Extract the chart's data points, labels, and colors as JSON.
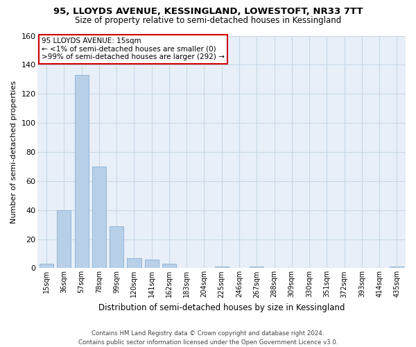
{
  "title": "95, LLOYDS AVENUE, KESSINGLAND, LOWESTOFT, NR33 7TT",
  "subtitle": "Size of property relative to semi-detached houses in Kessingland",
  "xlabel": "Distribution of semi-detached houses by size in Kessingland",
  "ylabel": "Number of semi-detached properties",
  "bar_labels": [
    "15sqm",
    "36sqm",
    "57sqm",
    "78sqm",
    "99sqm",
    "120sqm",
    "141sqm",
    "162sqm",
    "183sqm",
    "204sqm",
    "225sqm",
    "246sqm",
    "267sqm",
    "288sqm",
    "309sqm",
    "330sqm",
    "351sqm",
    "372sqm",
    "393sqm",
    "414sqm",
    "435sqm"
  ],
  "bar_values": [
    3,
    40,
    133,
    70,
    29,
    7,
    6,
    3,
    0,
    0,
    1,
    0,
    1,
    0,
    0,
    0,
    0,
    0,
    0,
    0,
    1
  ],
  "bar_color": "#b8cfe8",
  "bar_edge_color": "#8aafd0",
  "ylim": [
    0,
    160
  ],
  "yticks": [
    0,
    20,
    40,
    60,
    80,
    100,
    120,
    140,
    160
  ],
  "annotation_title": "95 LLOYDS AVENUE: 15sqm",
  "annotation_line1": "← <1% of semi-detached houses are smaller (0)",
  "annotation_line2": ">99% of semi-detached houses are larger (292) →",
  "annotation_box_color": "#ffffff",
  "annotation_box_edge": "#cc0000",
  "footer_line1": "Contains HM Land Registry data © Crown copyright and database right 2024.",
  "footer_line2": "Contains public sector information licensed under the Open Government Licence v3.0.",
  "figsize": [
    6.0,
    5.0
  ],
  "dpi": 100,
  "grid_color": "#c8d8e8",
  "background_color": "#e8eff8"
}
